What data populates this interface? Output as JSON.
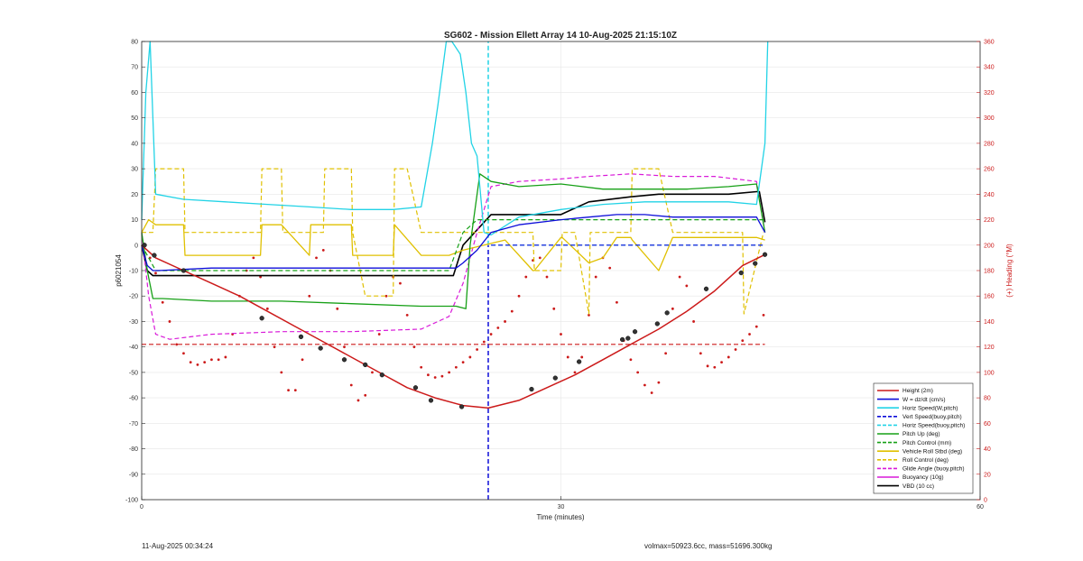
{
  "chart_data": {
    "type": "line",
    "title": "SG602 - Mission Ellett Array 14 10-Aug-2025 21:15:10Z",
    "xlabel": "Time (minutes)",
    "ylabel": "p6021054",
    "ylabel_right": "(+) Heading (°M)",
    "xlim": [
      0,
      60
    ],
    "ylim": [
      -100,
      80
    ],
    "ylim_right": [
      0,
      360
    ],
    "x_ticks": [
      "0",
      "30",
      "60"
    ],
    "y_ticks": [
      "80",
      "70",
      "60",
      "50",
      "40",
      "30",
      "20",
      "10",
      "0",
      "-10",
      "-20",
      "-30",
      "-40",
      "-50",
      "-60",
      "-70",
      "-80",
      "-90",
      "-100"
    ],
    "y_ticks_right": [
      "360",
      "340",
      "320",
      "300",
      "280",
      "260",
      "240",
      "220",
      "200",
      "180",
      "160",
      "140",
      "120",
      "100",
      "80",
      "60",
      "40",
      "20",
      "0"
    ],
    "grid": true,
    "legend_position": "bottom-right",
    "vlines": [
      {
        "x": 24.8,
        "color": "#0d0dd9",
        "style": "dashed",
        "y_range": [
          -100,
          0
        ]
      },
      {
        "x": 24.8,
        "color": "#22d3e6",
        "style": "dashed",
        "y_range": [
          0,
          80
        ]
      }
    ],
    "series": [
      {
        "name": "Height (2m)",
        "color": "#cc1a1a",
        "style": "solid",
        "width": 1.5,
        "x": [
          0,
          1,
          3,
          5,
          7,
          9,
          11,
          13,
          15,
          17,
          19,
          21,
          23,
          24.8,
          27,
          29,
          31,
          33,
          35,
          37,
          39,
          41,
          43,
          44.5
        ],
        "y": [
          0,
          -5,
          -10,
          -15,
          -20,
          -26,
          -32,
          -38,
          -44,
          -50,
          -56,
          -60,
          -63,
          -64,
          -61,
          -56,
          -51,
          -45,
          -39,
          -33,
          -26,
          -18,
          -8,
          -4
        ],
        "markers": [
          {
            "x": 0.2,
            "y": 0,
            "m": "o"
          },
          {
            "x": 0.9,
            "y": -4,
            "m": "o"
          },
          {
            "x": 3,
            "y": -10,
            "m": "o"
          },
          {
            "x": 8.6,
            "y": -28.7,
            "m": "o"
          },
          {
            "x": 11.4,
            "y": -36,
            "m": "o"
          },
          {
            "x": 12.8,
            "y": -40.5,
            "m": "o"
          },
          {
            "x": 14.5,
            "y": -45,
            "m": "o"
          },
          {
            "x": 16,
            "y": -47,
            "m": "o"
          },
          {
            "x": 17.2,
            "y": -51,
            "m": "o"
          },
          {
            "x": 19.6,
            "y": -56,
            "m": "o"
          },
          {
            "x": 20.7,
            "y": -61,
            "m": "o"
          },
          {
            "x": 22.9,
            "y": -63.5,
            "m": "o"
          },
          {
            "x": 27.9,
            "y": -56.6,
            "m": "o"
          },
          {
            "x": 29.6,
            "y": -52.2,
            "m": "o"
          },
          {
            "x": 31.3,
            "y": -45.8,
            "m": "o"
          },
          {
            "x": 34.4,
            "y": -37.1,
            "m": "o"
          },
          {
            "x": 34.8,
            "y": -36.6,
            "m": "o"
          },
          {
            "x": 35.3,
            "y": -34,
            "m": "o"
          },
          {
            "x": 36.9,
            "y": -30.9,
            "m": "o"
          },
          {
            "x": 37.6,
            "y": -26.6,
            "m": "o"
          },
          {
            "x": 40.4,
            "y": -17.2,
            "m": "o"
          },
          {
            "x": 42.9,
            "y": -10.9,
            "m": "o"
          },
          {
            "x": 43.9,
            "y": -7.2,
            "m": "o"
          },
          {
            "x": 44.6,
            "y": -3.7,
            "m": "o"
          }
        ]
      },
      {
        "name": "W = dz/dt (cm/s)",
        "color": "#0d0dd9",
        "style": "solid",
        "width": 1.3,
        "x": [
          0,
          0.4,
          0.8,
          1.2,
          5,
          10,
          15,
          20,
          22.5,
          23,
          24,
          25,
          27,
          30,
          32,
          34,
          36,
          38,
          40,
          42,
          44,
          44.6
        ],
        "y": [
          0,
          -8,
          -10,
          -10,
          -9,
          -9,
          -9,
          -9,
          -9,
          -7,
          -2,
          5,
          8,
          10,
          11,
          12,
          12,
          11,
          11,
          11,
          11,
          5
        ]
      },
      {
        "name": "Horiz Speed(W,pitch)",
        "color": "#22d3e6",
        "style": "solid",
        "width": 1.3,
        "x": [
          0,
          0.3,
          0.6,
          1,
          3,
          6,
          9,
          12,
          15,
          18,
          20,
          20.8,
          21.2,
          21.8,
          22.2,
          22.8,
          23.2,
          23.6,
          24,
          24.5,
          25,
          27,
          30,
          33,
          36,
          39,
          42,
          44,
          44.6,
          44.8
        ],
        "y": [
          10,
          60,
          80,
          20,
          18,
          17,
          16,
          15,
          14,
          14,
          15,
          40,
          55,
          80,
          80,
          75,
          60,
          40,
          35,
          5,
          4,
          11,
          14,
          16,
          17,
          17,
          17,
          16,
          40,
          80
        ]
      },
      {
        "name": "Vert Speed(buoy,pitch)",
        "color": "#0d0dd9",
        "style": "dashed",
        "width": 1.2,
        "x": [
          25,
          44.6
        ],
        "y": [
          0,
          0
        ]
      },
      {
        "name": "Horiz Speed(buoy,pitch)",
        "color": "#22d3e6",
        "style": "dashed",
        "width": 1.2,
        "x": [
          25,
          44.6
        ],
        "y": [
          0,
          0
        ]
      },
      {
        "name": "Pitch Up (deg)",
        "color": "#16a016",
        "style": "solid",
        "width": 1.3,
        "x": [
          0,
          0.4,
          0.8,
          1.5,
          5,
          10,
          15,
          20,
          22.5,
          23.2,
          23.5,
          24.2,
          25,
          27,
          30,
          33,
          36,
          39,
          42,
          44,
          44.6
        ],
        "y": [
          5,
          -10,
          -21,
          -21,
          -22,
          -22,
          -23,
          -24,
          -24,
          -25,
          0,
          28,
          25,
          23,
          24,
          22,
          22,
          22,
          23,
          24,
          5
        ]
      },
      {
        "name": "Pitch Control (mm)",
        "color": "#16a016",
        "style": "dashed",
        "width": 1.2,
        "x": [
          0,
          1,
          6,
          12,
          18,
          22,
          23,
          24,
          25,
          35,
          44.6
        ],
        "y": [
          0,
          -10,
          -10,
          -10,
          -10,
          -10,
          5,
          10,
          10,
          10,
          10
        ]
      },
      {
        "name": "Vehicle Roll Stbd (deg)",
        "color": "#e0c000",
        "style": "solid",
        "width": 1.3,
        "x": [
          0,
          0.5,
          1,
          2,
          3,
          3.1,
          6,
          8.5,
          8.6,
          10,
          12,
          12.1,
          15,
          15.1,
          16.5,
          18,
          18.1,
          20,
          22,
          23,
          24.5,
          26,
          28,
          28.1,
          30,
          30.1,
          32,
          33,
          34,
          35,
          35.1,
          37,
          38,
          40,
          42,
          44,
          44.6
        ],
        "y": [
          5,
          10,
          8,
          8,
          8,
          -4,
          -4,
          -4,
          8,
          8,
          -4,
          8,
          8,
          -4,
          -4,
          -4,
          8,
          -4,
          -4,
          -2,
          0,
          2,
          -10,
          -10,
          3,
          3,
          -7,
          -5,
          3,
          3,
          2,
          -10,
          3,
          3,
          3,
          3,
          2
        ]
      },
      {
        "name": "Roll Control (deg)",
        "color": "#e0c000",
        "style": "dashed",
        "width": 1.2,
        "x": [
          0,
          0.8,
          1,
          3,
          3.1,
          8.5,
          8.6,
          10,
          10.1,
          13,
          13.1,
          15,
          15.1,
          16,
          18,
          18.1,
          19,
          20,
          20.1,
          22,
          23,
          25,
          27,
          28,
          28.1,
          30,
          30.1,
          31,
          32,
          32.1,
          34,
          35,
          35.1,
          37,
          38,
          38.1,
          40,
          41,
          42,
          43,
          43.1,
          44.5
        ],
        "y": [
          5,
          5,
          30,
          30,
          5,
          5,
          30,
          30,
          5,
          5,
          30,
          30,
          5,
          -20,
          -20,
          30,
          30,
          5,
          5,
          5,
          5,
          5,
          5,
          5,
          -10,
          -10,
          5,
          5,
          -27,
          5,
          5,
          5,
          30,
          30,
          5,
          5,
          5,
          5,
          5,
          5,
          -27,
          5
        ]
      },
      {
        "name": "Glide Angle (buoy,pitch)",
        "color": "#d91ad9",
        "style": "dashed",
        "width": 1.2,
        "x": [
          0,
          0.5,
          1,
          2,
          5,
          10,
          15,
          20,
          22,
          23,
          24,
          25,
          27,
          30,
          32,
          35,
          38,
          41,
          44,
          44.6
        ],
        "y": [
          5,
          -20,
          -35,
          -37,
          -35,
          -34,
          -34,
          -33,
          -28,
          -15,
          5,
          23,
          25,
          26,
          27,
          28,
          27,
          27,
          25,
          5
        ]
      },
      {
        "name": "Buoyancy (10g)",
        "color": "#d91ad9",
        "style": "solid",
        "width": 1.3,
        "x": [],
        "y": []
      },
      {
        "name": "VBD (10 cc)",
        "color": "#000000",
        "style": "solid",
        "width": 1.6,
        "x": [
          0,
          0.4,
          0.8,
          1.3,
          5,
          10,
          15,
          20,
          20.3,
          22.3,
          23,
          25,
          28,
          30,
          32,
          35,
          37,
          40,
          42,
          44,
          44.2,
          44.6
        ],
        "y": [
          0,
          -10,
          -12,
          -12,
          -12,
          -12,
          -12,
          -12,
          -12,
          -12,
          0,
          12,
          12,
          12,
          17,
          19,
          20,
          20,
          20,
          21,
          21,
          9
        ]
      },
      {
        "name": "Heading",
        "axis": "right",
        "color": "#cc1a1a",
        "style": "dotted-markers",
        "x": [
          0.2,
          0.6,
          1,
          1.5,
          2,
          2.5,
          3,
          3.5,
          4,
          4.5,
          5,
          5.5,
          6,
          6.5,
          7,
          7.5,
          8,
          8.5,
          9,
          9.5,
          10,
          10.5,
          11,
          11.5,
          12,
          12.5,
          13,
          13.5,
          14,
          14.5,
          15,
          15.5,
          16,
          16.5,
          17,
          17.5,
          18,
          18.5,
          19,
          19.5,
          20,
          20.5,
          21,
          21.5,
          22,
          22.5,
          23,
          23.5,
          24,
          24.5,
          25,
          25.5,
          26,
          26.5,
          27,
          27.5,
          28,
          28.5,
          29,
          29.5,
          30,
          30.5,
          31,
          31.5,
          32,
          32.5,
          33,
          33.5,
          34,
          34.5,
          35,
          35.5,
          36,
          36.5,
          37,
          37.5,
          38,
          38.5,
          39,
          39.5,
          40,
          40.5,
          41,
          41.5,
          42,
          42.5,
          43,
          43.5,
          44,
          44.5
        ],
        "y": [
          200,
          190,
          178,
          155,
          140,
          122,
          115,
          108,
          106,
          108,
          110,
          110,
          112,
          130,
          160,
          180,
          190,
          175,
          150,
          120,
          100,
          86,
          86,
          110,
          160,
          190,
          196,
          180,
          150,
          120,
          90,
          78,
          82,
          100,
          130,
          160,
          175,
          170,
          145,
          120,
          104,
          98,
          96,
          97,
          100,
          104,
          108,
          112,
          118,
          124,
          130,
          135,
          140,
          148,
          160,
          175,
          188,
          190,
          175,
          150,
          130,
          112,
          100,
          112,
          145,
          175,
          190,
          182,
          155,
          125,
          110,
          100,
          90,
          84,
          92,
          115,
          150,
          175,
          168,
          140,
          115,
          105,
          104,
          108,
          112,
          118,
          125,
          130,
          136,
          145
        ]
      },
      {
        "name": "Heading reference",
        "axis": "right",
        "color": "#cc1a1a",
        "style": "dashed",
        "x": [
          0,
          44.6
        ],
        "y": [
          122,
          122
        ]
      }
    ]
  },
  "footer": {
    "timestamp": "11-Aug-2025 00:34:24",
    "volmax": "volmax=50923.6cc, mass=51696.300kg"
  }
}
